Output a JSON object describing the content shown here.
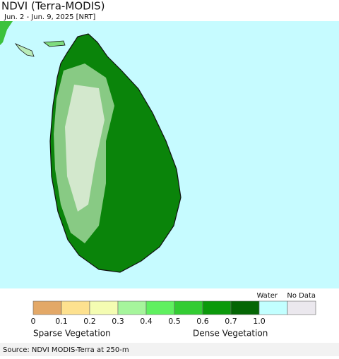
{
  "header": {
    "title": "NDVI (Terra-MODIS)",
    "subtitle": "Jun. 2 - Jun. 9, 2025 [NRT]"
  },
  "legend": {
    "colors": [
      "#e3a867",
      "#fde18f",
      "#f4fcb2",
      "#a6f59c",
      "#60f060",
      "#33cc33",
      "#0b990b",
      "#056605",
      "#c2ffff",
      "#ebe8ee"
    ],
    "ticks": [
      "0",
      "0.1",
      "0.2",
      "0.3",
      "0.4",
      "0.5",
      "0.6",
      "0.7",
      "1.0"
    ],
    "water": "Water",
    "no_data": "No Data",
    "sparse": "Sparse Vegetation",
    "dense": "Dense Vegetation"
  },
  "footer": {
    "source": "Source: NDVI MODIS-Terra at 250-m"
  }
}
